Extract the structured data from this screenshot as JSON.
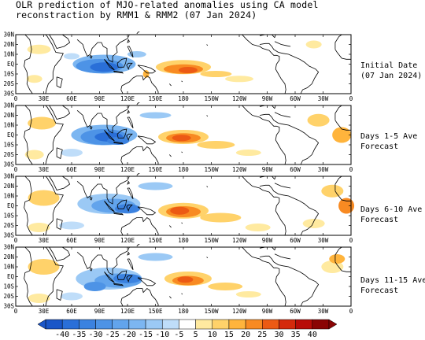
{
  "title_line1": "OLR prediction of MJO-related anomalies using CA model",
  "title_line2": "reconstraction by RMM1 & RMM2 (07 Jan 2024)",
  "y_ticks": [
    "30N",
    "20N",
    "10N",
    "EQ",
    "10S",
    "20S",
    "30S"
  ],
  "x_ticks": [
    "0",
    "30E",
    "60E",
    "90E",
    "120E",
    "150E",
    "180",
    "150W",
    "120W",
    "90W",
    "60W",
    "30W",
    "0"
  ],
  "panels": [
    {
      "label_line1": "Initial Date",
      "label_line2": "(07 Jan 2024)"
    },
    {
      "label_line1": "Days 1-5 Ave",
      "label_line2": "Forecast"
    },
    {
      "label_line1": "Days 6-10 Ave",
      "label_line2": "Forecast"
    },
    {
      "label_line1": "Days 11-15 Ave",
      "label_line2": "Forecast"
    }
  ],
  "colorbar": {
    "levels": [
      "-40",
      "-35",
      "-30",
      "-25",
      "-20",
      "-15",
      "-10",
      "-5",
      "5",
      "10",
      "15",
      "20",
      "25",
      "30",
      "35",
      "40"
    ],
    "colors": [
      "#1a56c8",
      "#2a6fd8",
      "#3b82e0",
      "#4d93e6",
      "#62a4ec",
      "#7cb6f1",
      "#9bc9f5",
      "#bfddf9",
      "#ffffff",
      "#ffeaa0",
      "#ffd26a",
      "#ffb43c",
      "#f88a22",
      "#ec5a14",
      "#d42a0c",
      "#b80c08",
      "#8a0404"
    ]
  },
  "colors": {
    "negative": "#2f6fd6",
    "positive": "#e8400f",
    "land": "#000000"
  }
}
